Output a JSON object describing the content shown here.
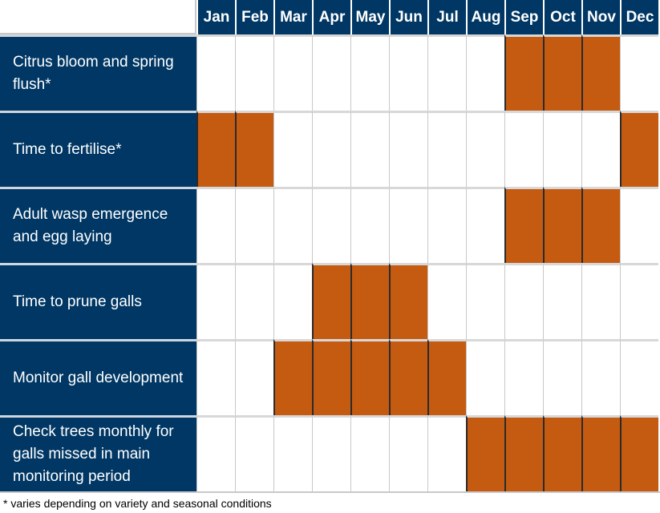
{
  "chart_data": {
    "type": "table",
    "months": [
      "Jan",
      "Feb",
      "Mar",
      "Apr",
      "May",
      "Jun",
      "Jul",
      "Aug",
      "Sep",
      "Oct",
      "Nov",
      "Dec"
    ],
    "rows": [
      {
        "label": "Citrus bloom and spring flush*",
        "active": [
          "Sep",
          "Oct",
          "Nov"
        ]
      },
      {
        "label": "Time to fertilise*",
        "active": [
          "Jan",
          "Feb",
          "Dec"
        ]
      },
      {
        "label": "Adult wasp emergence and egg laying",
        "active": [
          "Sep",
          "Oct",
          "Nov"
        ]
      },
      {
        "label": "Time to prune galls",
        "active": [
          "Apr",
          "May",
          "Jun"
        ]
      },
      {
        "label": "Monitor gall development",
        "active": [
          "Mar",
          "Apr",
          "May",
          "Jun",
          "Jul"
        ]
      },
      {
        "label": "Check trees monthly for galls missed in main monitoring period",
        "active": [
          "Aug",
          "Sep",
          "Oct",
          "Nov",
          "Dec"
        ]
      }
    ],
    "footnote": "* varies depending on variety and seasonal conditions"
  },
  "colors": {
    "header_bg": "#003764",
    "active_fill": "#c55a11",
    "text_light": "#ffffff"
  }
}
